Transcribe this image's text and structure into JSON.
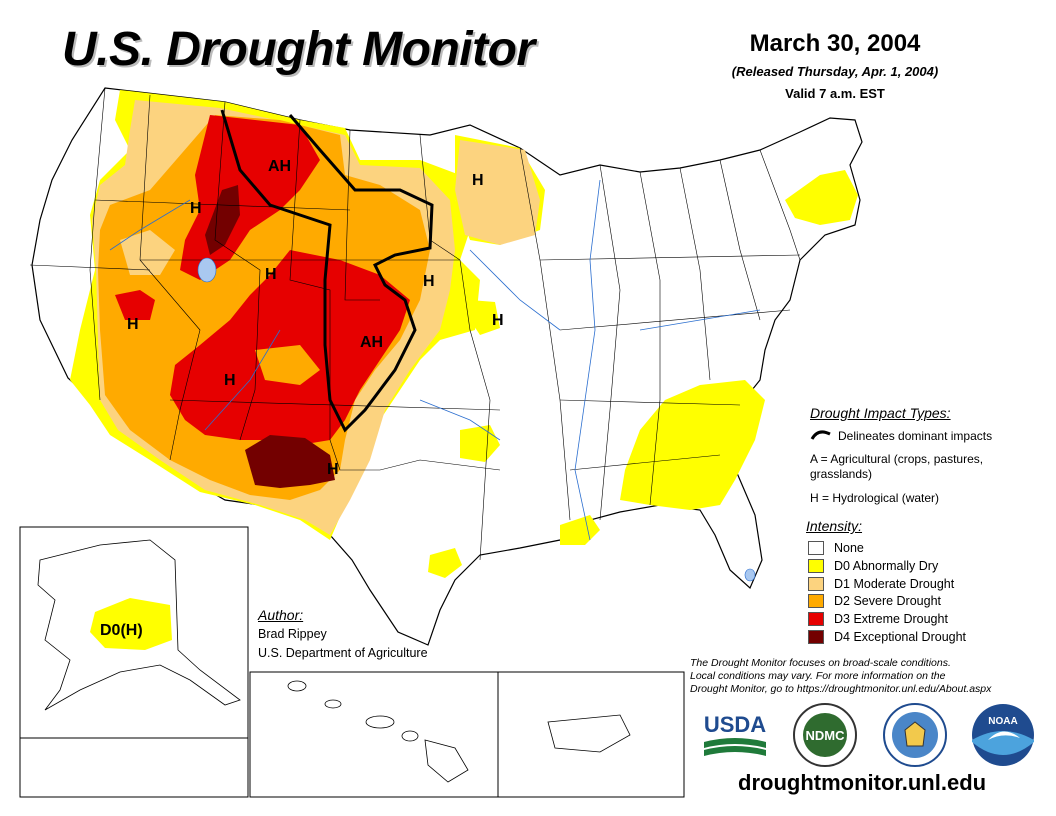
{
  "title": "U.S. Drought Monitor",
  "date": "March 30, 2004",
  "released": "(Released Thursday, Apr. 1, 2004)",
  "valid": "Valid 7 a.m. EST",
  "impact_types": {
    "heading": "Drought Impact Types:",
    "line_label": "Delineates dominant impacts",
    "agricultural": "A = Agricultural (crops, pastures,",
    "agricultural_2": "grasslands)",
    "hydrological": "H = Hydrological (water)"
  },
  "intensity": {
    "heading": "Intensity:",
    "items": [
      {
        "label": "None",
        "color": "#ffffff"
      },
      {
        "label": "D0 Abnormally Dry",
        "color": "#ffff00"
      },
      {
        "label": "D1 Moderate Drought",
        "color": "#fcd37f"
      },
      {
        "label": "D2 Severe Drought",
        "color": "#ffaa00"
      },
      {
        "label": "D3 Extreme Drought",
        "color": "#e60000"
      },
      {
        "label": "D4 Exceptional Drought",
        "color": "#730000"
      }
    ]
  },
  "map_labels": {
    "ah_north": "AH",
    "h_idaho": "H",
    "h_minnesota": "H",
    "h_utah": "H",
    "h_nebraska": "H",
    "h_nevada": "H",
    "h_iowa": "H",
    "ah_plains": "AH",
    "h_arizona": "H",
    "h_texas": "H",
    "alaska": "D0(H)"
  },
  "author": {
    "heading": "Author:",
    "name": "Brad Rippey",
    "org": "U.S. Department of Agriculture"
  },
  "disclaimer": {
    "line1": "The Drought Monitor focuses on broad-scale conditions.",
    "line2": "Local conditions may vary. For more information on the",
    "line3": "Drought Monitor, go to https://droughtmonitor.unl.edu/About.aspx"
  },
  "logos": {
    "usda": "USDA",
    "ndmc": "NDMC",
    "noaa": "NOAA"
  },
  "website": "droughtmonitor.unl.edu"
}
